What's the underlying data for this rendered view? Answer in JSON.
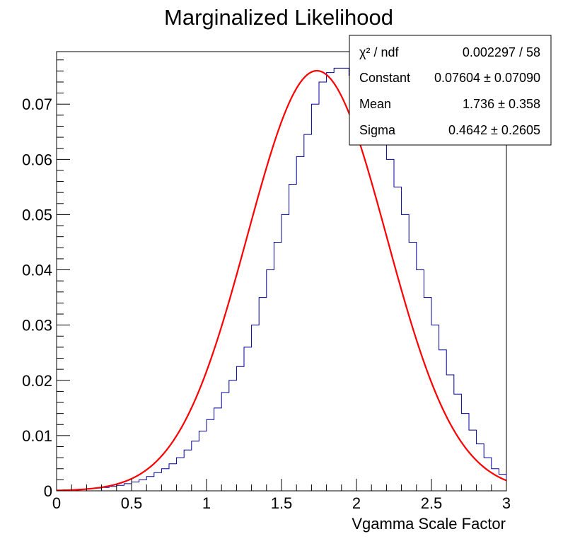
{
  "chart_data": {
    "type": "bar",
    "title": "Marginalized Likelihood",
    "xlabel": "Vgamma Scale Factor",
    "ylabel": "",
    "xlim": [
      0,
      3
    ],
    "ylim": [
      0,
      0.0795
    ],
    "x_ticks": [
      "0",
      "0.5",
      "1",
      "1.5",
      "2",
      "2.5",
      "3"
    ],
    "y_ticks": [
      "0",
      "0.01",
      "0.02",
      "0.03",
      "0.04",
      "0.05",
      "0.06",
      "0.07"
    ],
    "bins": {
      "n": 60,
      "min": 0,
      "max": 3
    },
    "series": [
      {
        "style": "histogram",
        "color": "#000099",
        "values": [
          0.0001,
          0.0002,
          0.0002,
          0.0003,
          0.0004,
          0.0005,
          0.0006,
          0.0008,
          0.001,
          0.0013,
          0.0016,
          0.002,
          0.0026,
          0.0033,
          0.004,
          0.0049,
          0.006,
          0.0074,
          0.009,
          0.0108,
          0.0129,
          0.015,
          0.0178,
          0.02,
          0.0225,
          0.026,
          0.03,
          0.035,
          0.04,
          0.045,
          0.05,
          0.0555,
          0.0605,
          0.0645,
          0.07,
          0.074,
          0.0757,
          0.0765,
          0.0765,
          0.0752,
          0.072,
          0.07,
          0.067,
          0.0645,
          0.06,
          0.055,
          0.05,
          0.045,
          0.04,
          0.035,
          0.03,
          0.0255,
          0.021,
          0.0175,
          0.014,
          0.011,
          0.0085,
          0.006,
          0.004,
          0.003
        ]
      },
      {
        "style": "line",
        "color": "#ff0000",
        "function": "gaus",
        "params": {
          "constant": 0.07604,
          "mean": 1.736,
          "sigma": 0.4642
        }
      }
    ],
    "stats_box": {
      "rows": [
        {
          "label": "χ² / ndf",
          "value": "0.002297 / 58"
        },
        {
          "label": "Constant",
          "value": "0.07604 ± 0.07090"
        },
        {
          "label": "Mean",
          "value": "1.736 ± 0.358"
        },
        {
          "label": "Sigma",
          "value": "0.4642 ± 0.2605"
        }
      ]
    },
    "grid": false,
    "legend": "none"
  }
}
